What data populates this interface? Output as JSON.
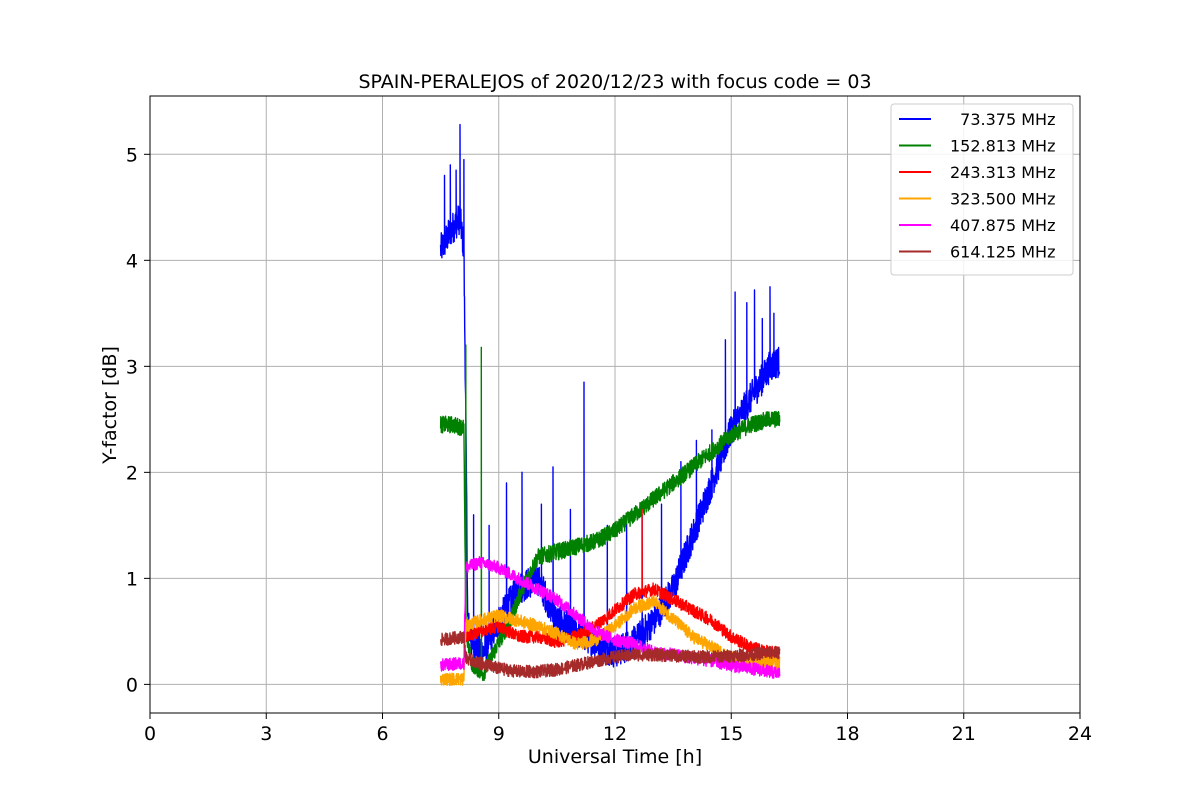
{
  "chart_data": {
    "type": "line",
    "title": "SPAIN-PERALEJOS of 2020/12/23 with focus code = 03",
    "xlabel": "Universal Time [h]",
    "ylabel": "Y-factor [dB]",
    "xlim": [
      0,
      24
    ],
    "ylim": [
      -0.27,
      5.55
    ],
    "xticks": [
      0,
      3,
      6,
      9,
      12,
      15,
      18,
      21,
      24
    ],
    "yticks": [
      0,
      1,
      2,
      3,
      4,
      5
    ],
    "grid": true,
    "legend_position": "top-right",
    "series": [
      {
        "name": "  73.375 MHz",
        "color": "#0000ff",
        "noise": 0.15,
        "x": [
          7.5,
          7.8,
          8.0,
          8.1,
          8.15,
          8.2,
          8.3,
          8.6,
          9.0,
          9.5,
          10.0,
          10.5,
          11.0,
          11.5,
          12.0,
          12.5,
          13.0,
          13.5,
          14.0,
          14.5,
          15.0,
          15.5,
          16.0,
          16.25
        ],
        "y": [
          4.1,
          4.3,
          4.4,
          4.1,
          2.5,
          0.6,
          0.4,
          0.3,
          0.6,
          0.9,
          1.0,
          0.6,
          0.5,
          0.4,
          0.3,
          0.4,
          0.6,
          0.9,
          1.4,
          1.9,
          2.4,
          2.7,
          3.0,
          3.05
        ],
        "spikes": [
          {
            "x": 7.6,
            "y": 4.8
          },
          {
            "x": 7.75,
            "y": 4.9
          },
          {
            "x": 7.9,
            "y": 4.85
          },
          {
            "x": 8.0,
            "y": 5.28
          },
          {
            "x": 8.1,
            "y": 4.95
          },
          {
            "x": 8.35,
            "y": 1.6
          },
          {
            "x": 8.75,
            "y": 1.5
          },
          {
            "x": 9.2,
            "y": 1.9
          },
          {
            "x": 9.6,
            "y": 2.0
          },
          {
            "x": 10.1,
            "y": 1.7
          },
          {
            "x": 10.4,
            "y": 2.05
          },
          {
            "x": 10.85,
            "y": 1.65
          },
          {
            "x": 11.2,
            "y": 2.85
          },
          {
            "x": 11.8,
            "y": 1.5
          },
          {
            "x": 12.3,
            "y": 1.55
          },
          {
            "x": 12.7,
            "y": 1.6
          },
          {
            "x": 13.2,
            "y": 1.7
          },
          {
            "x": 13.7,
            "y": 2.1
          },
          {
            "x": 14.1,
            "y": 2.3
          },
          {
            "x": 14.5,
            "y": 2.4
          },
          {
            "x": 14.85,
            "y": 3.25
          },
          {
            "x": 15.1,
            "y": 3.7
          },
          {
            "x": 15.4,
            "y": 3.6
          },
          {
            "x": 15.6,
            "y": 3.72
          },
          {
            "x": 15.8,
            "y": 3.45
          },
          {
            "x": 16.0,
            "y": 3.75
          },
          {
            "x": 16.1,
            "y": 3.5
          }
        ]
      },
      {
        "name": "152.813 MHz",
        "color": "#008000",
        "noise": 0.08,
        "x": [
          7.5,
          7.8,
          8.1,
          8.15,
          8.3,
          8.6,
          9.0,
          9.3,
          9.6,
          10.0,
          10.5,
          11.0,
          11.5,
          12.0,
          12.5,
          13.0,
          13.5,
          14.0,
          14.5,
          15.0,
          15.5,
          16.0,
          16.25
        ],
        "y": [
          2.45,
          2.45,
          2.42,
          0.5,
          0.2,
          0.1,
          0.4,
          0.6,
          0.9,
          1.2,
          1.25,
          1.3,
          1.35,
          1.45,
          1.6,
          1.75,
          1.9,
          2.05,
          2.2,
          2.35,
          2.45,
          2.5,
          2.5
        ],
        "spikes": [
          {
            "x": 8.15,
            "y": 3.2
          },
          {
            "x": 8.55,
            "y": 3.18
          }
        ]
      },
      {
        "name": "243.313 MHz",
        "color": "#ff0000",
        "noise": 0.06,
        "x": [
          8.15,
          8.5,
          9.0,
          9.5,
          10.0,
          10.5,
          11.0,
          11.5,
          12.0,
          12.5,
          13.0,
          13.5,
          14.0,
          14.5,
          15.0,
          15.5,
          16.0,
          16.25
        ],
        "y": [
          0.45,
          0.5,
          0.55,
          0.45,
          0.45,
          0.4,
          0.45,
          0.55,
          0.7,
          0.85,
          0.9,
          0.8,
          0.7,
          0.6,
          0.45,
          0.35,
          0.3,
          0.3
        ],
        "spikes": [
          {
            "x": 12.7,
            "y": 1.65
          }
        ]
      },
      {
        "name": "323.500 MHz",
        "color": "#ffa500",
        "noise": 0.06,
        "x": [
          7.5,
          8.1,
          8.15,
          8.5,
          9.0,
          9.5,
          10.0,
          10.5,
          11.0,
          11.5,
          12.0,
          12.5,
          13.0,
          13.5,
          14.0,
          14.5,
          15.0,
          15.5,
          16.0,
          16.25
        ],
        "y": [
          0.05,
          0.05,
          0.55,
          0.6,
          0.65,
          0.6,
          0.55,
          0.48,
          0.38,
          0.42,
          0.55,
          0.72,
          0.78,
          0.62,
          0.45,
          0.35,
          0.25,
          0.22,
          0.2,
          0.2
        ],
        "spikes": []
      },
      {
        "name": "407.875 MHz",
        "color": "#ff00ff",
        "noise": 0.06,
        "x": [
          7.5,
          8.1,
          8.15,
          8.5,
          9.0,
          9.5,
          10.0,
          10.5,
          11.0,
          11.5,
          12.0,
          12.5,
          13.0,
          13.5,
          14.0,
          14.5,
          15.0,
          15.5,
          16.0,
          16.25
        ],
        "y": [
          0.18,
          0.2,
          1.1,
          1.15,
          1.1,
          1.0,
          0.9,
          0.8,
          0.65,
          0.5,
          0.42,
          0.38,
          0.3,
          0.28,
          0.25,
          0.22,
          0.18,
          0.15,
          0.12,
          0.1
        ],
        "spikes": []
      },
      {
        "name": "614.125 MHz",
        "color": "#a52a2a",
        "noise": 0.06,
        "x": [
          7.5,
          8.1,
          8.15,
          8.5,
          9.0,
          9.5,
          10.0,
          10.5,
          11.0,
          11.5,
          12.0,
          12.5,
          13.0,
          13.5,
          14.0,
          14.5,
          15.0,
          15.5,
          16.0,
          16.25
        ],
        "y": [
          0.42,
          0.45,
          0.25,
          0.2,
          0.15,
          0.12,
          0.12,
          0.14,
          0.18,
          0.22,
          0.26,
          0.28,
          0.28,
          0.27,
          0.26,
          0.26,
          0.27,
          0.28,
          0.3,
          0.3
        ],
        "spikes": []
      }
    ]
  }
}
